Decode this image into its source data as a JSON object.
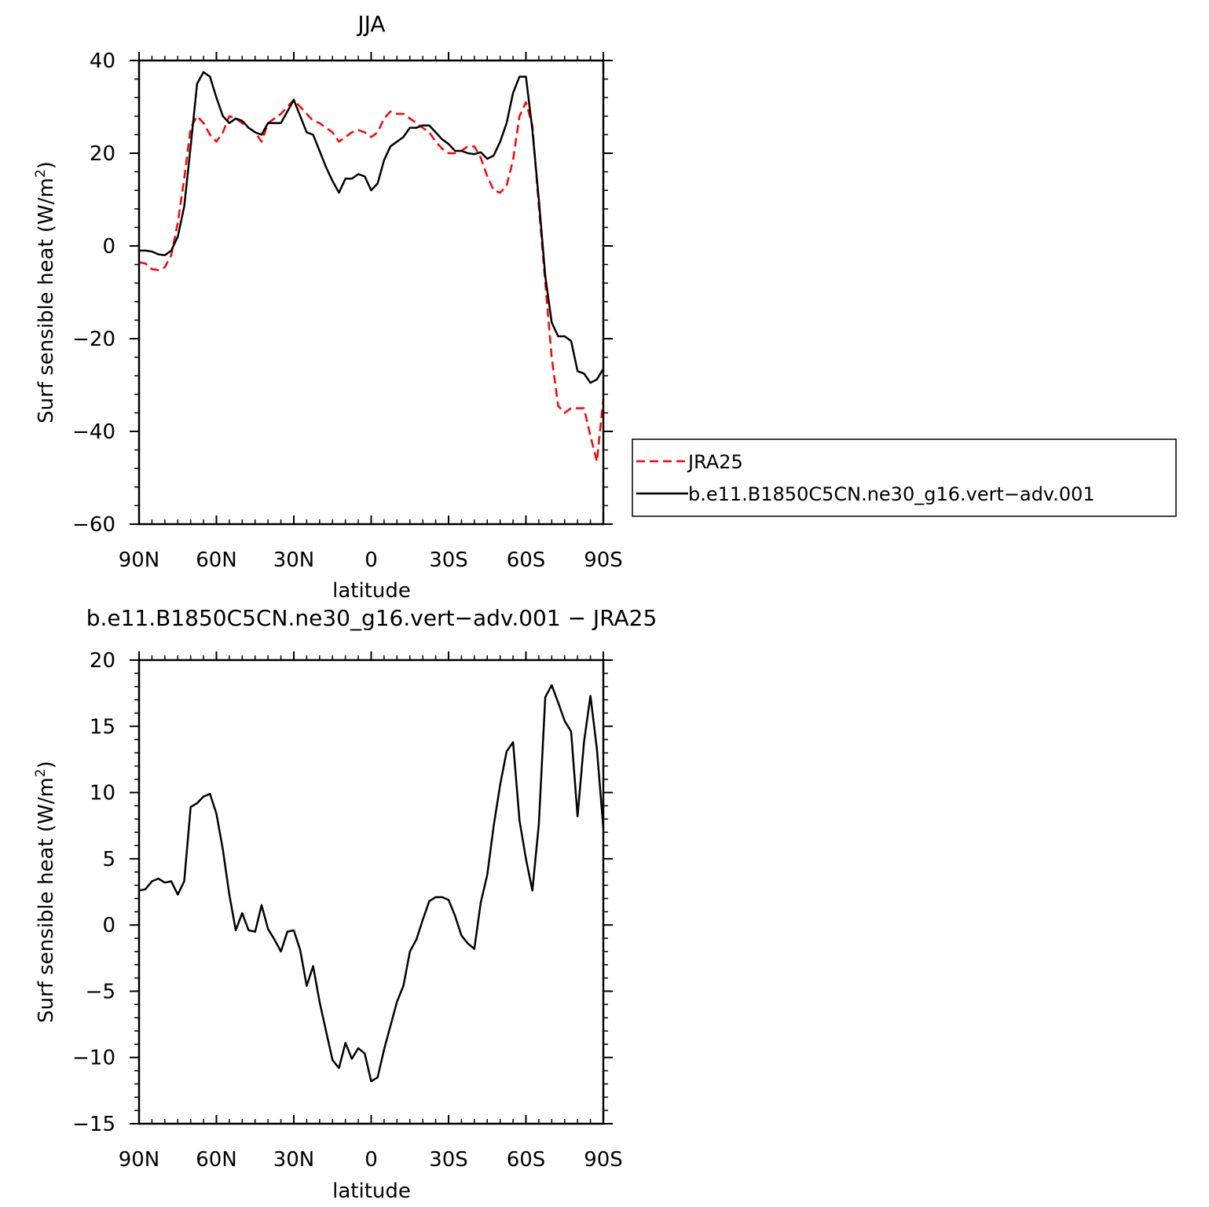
{
  "chart_data": [
    {
      "type": "line",
      "title": "JJA",
      "xlabel": "latitude",
      "ylabel": "Surf sensible heat (W/m²)",
      "ylabel_parts": [
        "Surf sensible heat (W/m",
        "2",
        ")"
      ],
      "xlim": [
        90,
        -90
      ],
      "ylim": [
        -60,
        40
      ],
      "xticks": [
        90,
        60,
        30,
        0,
        -30,
        -60,
        -90
      ],
      "xtick_labels": [
        "90N",
        "60N",
        "30N",
        "0",
        "30S",
        "60S",
        "90S"
      ],
      "yticks": [
        -60,
        -40,
        -20,
        0,
        20,
        40
      ],
      "ytick_labels": [
        "−60",
        "−40",
        "−20",
        "0",
        "20",
        "40"
      ],
      "legend": {
        "placement": "right, outside plot"
      },
      "series": [
        {
          "name": "JRA25",
          "color": "#ff0000",
          "dash": "dashed",
          "x": [
            90,
            87.5,
            85,
            82.5,
            80,
            77.5,
            75,
            72.5,
            70,
            67.5,
            65,
            62.5,
            60,
            57.5,
            55,
            52.5,
            50,
            47.5,
            45,
            42.5,
            40,
            37.5,
            35,
            32.5,
            30,
            27.5,
            25,
            22.5,
            20,
            17.5,
            15,
            12.5,
            10,
            7.5,
            5,
            2.5,
            0,
            -2.5,
            -5,
            -7.5,
            -10,
            -12.5,
            -15,
            -17.5,
            -20,
            -22.5,
            -25,
            -27.5,
            -30,
            -32.5,
            -35,
            -37.5,
            -40,
            -42.5,
            -45,
            -47.5,
            -50,
            -52.5,
            -55,
            -57.5,
            -60,
            -62.5,
            -65,
            -67.5,
            -70,
            -72.5,
            -75,
            -77.5,
            -80,
            -82.5,
            -85,
            -87.5,
            -90
          ],
          "y": [
            -3.5,
            -3.8,
            -5,
            -5.2,
            -4.6,
            -2,
            5,
            14.5,
            25.5,
            28,
            26.5,
            24,
            22.5,
            24.5,
            28,
            27.5,
            26.5,
            25.5,
            24.5,
            22.5,
            26.5,
            27.5,
            28.5,
            30,
            31.5,
            30,
            28.5,
            27,
            26.5,
            25.5,
            24.5,
            22.5,
            23.5,
            24.5,
            25,
            24.5,
            23.5,
            24.5,
            27.5,
            29,
            28.5,
            28.5,
            27.5,
            26.5,
            25.5,
            24.5,
            22.5,
            21,
            20,
            20,
            20.5,
            21.5,
            21.5,
            19,
            15,
            12,
            11.5,
            13,
            18.5,
            28,
            31,
            26,
            8.5,
            -8,
            -24,
            -34.5,
            -36,
            -35,
            -35,
            -35,
            -41,
            -46.5,
            -33
          ]
        },
        {
          "name": "b.e11.B1850C5CN.ne30_g16.vert−adv.001",
          "color": "#000000",
          "dash": "solid",
          "x": [
            90,
            87.5,
            85,
            82.5,
            80,
            77.5,
            75,
            72.5,
            70,
            67.5,
            65,
            62.5,
            60,
            57.5,
            55,
            52.5,
            50,
            47.5,
            45,
            42.5,
            40,
            37.5,
            35,
            32.5,
            30,
            27.5,
            25,
            22.5,
            20,
            17.5,
            15,
            12.5,
            10,
            7.5,
            5,
            2.5,
            0,
            -2.5,
            -5,
            -7.5,
            -10,
            -12.5,
            -15,
            -17.5,
            -20,
            -22.5,
            -25,
            -27.5,
            -30,
            -32.5,
            -35,
            -37.5,
            -40,
            -42.5,
            -45,
            -47.5,
            -50,
            -52.5,
            -55,
            -57.5,
            -60,
            -62.5,
            -65,
            -67.5,
            -70,
            -72.5,
            -75,
            -77.5,
            -80,
            -82.5,
            -85,
            -87.5,
            -90
          ],
          "y": [
            -1,
            -1,
            -1.2,
            -1.8,
            -2,
            -1,
            2,
            8.5,
            21.5,
            35,
            37.5,
            36.5,
            32,
            28,
            26.5,
            27.5,
            27,
            25.5,
            24.5,
            24,
            26.5,
            26.5,
            26.5,
            29,
            31.5,
            28,
            24.5,
            24,
            20.5,
            17,
            14,
            11.5,
            14.5,
            14.5,
            15.5,
            15,
            12,
            13.5,
            18.5,
            21.5,
            22.5,
            23.5,
            25.5,
            25.5,
            26,
            26,
            24.5,
            23,
            22,
            20.5,
            20.5,
            20,
            19.8,
            20.2,
            18.8,
            19.5,
            22.5,
            26.5,
            33,
            36.5,
            36.5,
            25,
            10,
            -6.5,
            -16.5,
            -19.5,
            -19.5,
            -20.5,
            -27,
            -27.5,
            -29.5,
            -28.8,
            -26.5
          ]
        }
      ]
    },
    {
      "type": "line",
      "title": "b.e11.B1850C5CN.ne30_g16.vert−adv.001  −  JRA25",
      "xlabel": "latitude",
      "ylabel": "Surf sensible heat (W/m²)",
      "ylabel_parts": [
        "Surf sensible heat (W/m",
        "2",
        ")"
      ],
      "xlim": [
        90,
        -90
      ],
      "ylim": [
        -15,
        20
      ],
      "xticks": [
        90,
        60,
        30,
        0,
        -30,
        -60,
        -90
      ],
      "xtick_labels": [
        "90N",
        "60N",
        "30N",
        "0",
        "30S",
        "60S",
        "90S"
      ],
      "yticks": [
        -15,
        -10,
        -5,
        0,
        5,
        10,
        15,
        20
      ],
      "ytick_labels": [
        "−15",
        "−10",
        "−5",
        "0",
        "5",
        "10",
        "15",
        "20"
      ],
      "series": [
        {
          "color": "#000000",
          "dash": "solid",
          "x": [
            90,
            87.5,
            85,
            82.5,
            80,
            77.5,
            75,
            72.5,
            70,
            67.5,
            65,
            62.5,
            60,
            57.5,
            55,
            52.5,
            50,
            47.5,
            45,
            42.5,
            40,
            37.5,
            35,
            32.5,
            30,
            27.5,
            25,
            22.5,
            20,
            17.5,
            15,
            12.5,
            10,
            7.5,
            5,
            2.5,
            0,
            -2.5,
            -5,
            -7.5,
            -10,
            -12.5,
            -15,
            -17.5,
            -20,
            -22.5,
            -25,
            -27.5,
            -30,
            -32.5,
            -35,
            -37.5,
            -40,
            -42.5,
            -45,
            -47.5,
            -50,
            -52.5,
            -55,
            -57.5,
            -60,
            -62.5,
            -65,
            -67.5,
            -70,
            -72.5,
            -75,
            -77.5,
            -80,
            -82.5,
            -85,
            -87.5,
            -90
          ],
          "y": [
            2.6,
            2.7,
            3.3,
            3.5,
            3.2,
            3.3,
            2.3,
            3.3,
            8.9,
            9.2,
            9.7,
            9.9,
            8.4,
            5.7,
            2.3,
            -0.4,
            0.9,
            -0.4,
            -0.5,
            1.5,
            -0.3,
            -1.1,
            -2,
            -0.5,
            -0.4,
            -1.9,
            -4.6,
            -3.1,
            -5.8,
            -8,
            -10.2,
            -10.8,
            -8.9,
            -10.1,
            -9.3,
            -9.7,
            -11.8,
            -11.5,
            -9.4,
            -7.6,
            -5.8,
            -4.6,
            -2,
            -1.1,
            0.4,
            1.8,
            2.1,
            2.1,
            1.9,
            0.7,
            -0.8,
            -1.4,
            -1.8,
            1.7,
            3.8,
            7.5,
            10.6,
            13.1,
            13.8,
            7.9,
            5,
            2.6,
            7.6,
            17.2,
            18.1,
            16.8,
            15.4,
            14.6,
            8.2,
            13.8,
            17.3,
            13.3,
            7.3
          ]
        }
      ]
    }
  ]
}
